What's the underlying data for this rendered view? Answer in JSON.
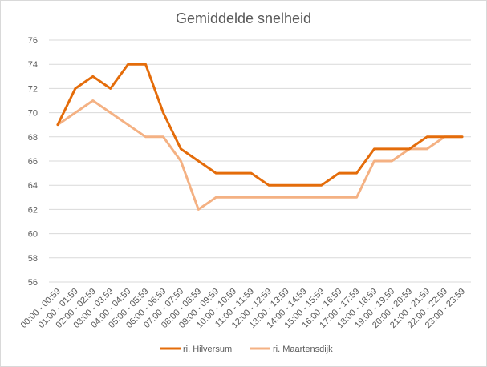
{
  "chart_data": {
    "type": "line",
    "title": "Gemiddelde snelheid",
    "xlabel": "",
    "ylabel": "",
    "ylim": [
      56,
      76
    ],
    "yticks": [
      56,
      58,
      60,
      62,
      64,
      66,
      68,
      70,
      72,
      74,
      76
    ],
    "grid": true,
    "legend_position": "bottom",
    "categories": [
      "00:00 - 00:59",
      "01:00 - 01:59",
      "02:00 - 02:59",
      "03:00 - 03:59",
      "04:00 - 04:59",
      "05:00 - 05:59",
      "06:00 - 06:59",
      "07:00 - 07:59",
      "08:00 - 08:59",
      "09:00 - 09:59",
      "10:00 - 10:59",
      "11:00 - 11:59",
      "12:00 - 12:59",
      "13:00 - 13:59",
      "14:00 - 14:59",
      "15:00 - 15:59",
      "16:00 - 16:59",
      "17:00 - 17:59",
      "18:00 - 18:59",
      "19:00 - 19:59",
      "20:00 - 20:59",
      "21:00 - 21:59",
      "22:00 - 22:59",
      "23:00 - 23:59"
    ],
    "series": [
      {
        "name": "ri. Hilversum",
        "color": "#E46C0A",
        "values": [
          69,
          72,
          73,
          72,
          74,
          74,
          70,
          67,
          66,
          65,
          65,
          65,
          64,
          64,
          64,
          64,
          65,
          65,
          67,
          67,
          67,
          68,
          68,
          68
        ]
      },
      {
        "name": "ri. Maartensdijk",
        "color": "#F4B183",
        "values": [
          69,
          70,
          71,
          70,
          69,
          68,
          68,
          66,
          62,
          63,
          63,
          63,
          63,
          63,
          63,
          63,
          63,
          63,
          66,
          66,
          67,
          67,
          68,
          68
        ]
      }
    ],
    "gridline_color": "#d9d9d9"
  }
}
